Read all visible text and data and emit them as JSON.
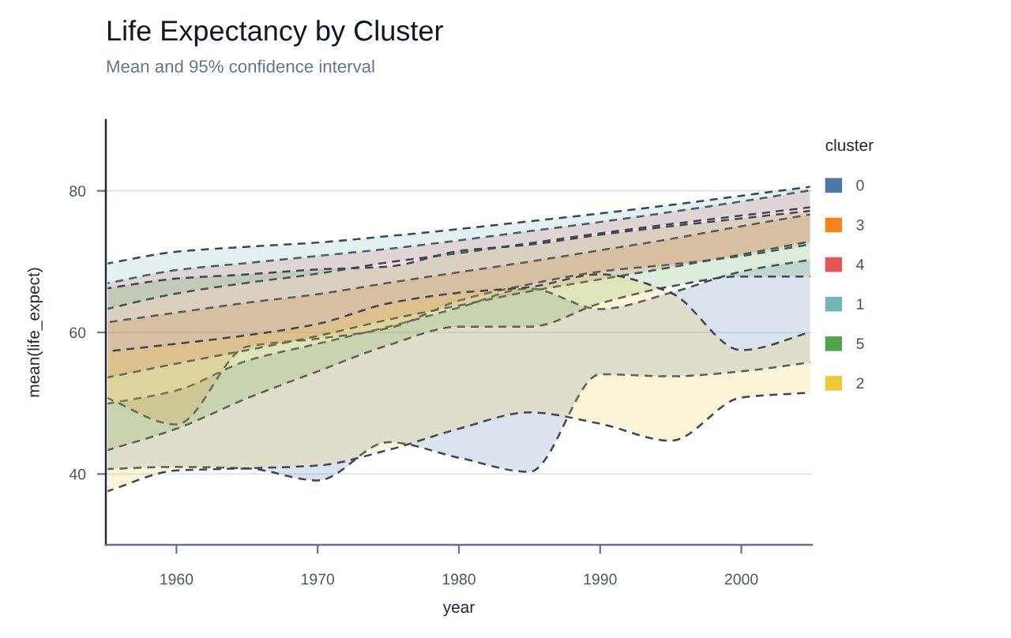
{
  "chart_data": {
    "type": "area",
    "title": "Life Expectancy by Cluster",
    "subtitle": "Mean and 95% confidence interval",
    "xlabel": "year",
    "ylabel": "mean(life_expect)",
    "legend_title": "cluster",
    "x": [
      1955,
      1960,
      1965,
      1970,
      1975,
      1980,
      1985,
      1990,
      1995,
      2000,
      2005
    ],
    "xlim": [
      1955,
      2005
    ],
    "xticks": [
      1960,
      1970,
      1980,
      1990,
      2000
    ],
    "ylim": [
      30,
      90
    ],
    "yticks": [
      40,
      60,
      80
    ],
    "grid": "y",
    "legend": "right",
    "line_style": "dashed",
    "series": [
      {
        "name": "0",
        "color": "#4c78a8",
        "values": [
          null,
          null,
          null,
          null,
          null,
          null,
          null,
          null,
          null,
          null,
          null
        ],
        "lower": [
          40.7,
          41.0,
          40.8,
          39.1,
          44.5,
          42.3,
          40.3,
          54.1,
          53.8,
          54.5,
          55.8
        ],
        "upper": [
          49.9,
          51.8,
          56.0,
          58.4,
          60.8,
          63.5,
          66.2,
          63.3,
          65.6,
          68.6,
          70.3
        ]
      },
      {
        "name": "3",
        "color": "#f58518",
        "values": [
          null,
          null,
          null,
          null,
          null,
          null,
          null,
          null,
          null,
          null,
          null
        ],
        "lower": [
          50.8,
          47.0,
          58.0,
          59.1,
          60.6,
          64.5,
          66.8,
          68.6,
          69.6,
          70.8,
          72.5
        ],
        "upper": [
          61.4,
          62.8,
          64.2,
          65.4,
          67.0,
          68.5,
          70.0,
          71.6,
          73.2,
          75.0,
          76.7
        ]
      },
      {
        "name": "4",
        "color": "#e45756",
        "values": [
          null,
          null,
          null,
          null,
          null,
          null,
          null,
          null,
          null,
          null,
          null
        ],
        "lower": [
          53.6,
          55.6,
          57.5,
          59.5,
          61.8,
          63.8,
          65.8,
          67.5,
          69.2,
          71.0,
          72.9
        ],
        "upper": [
          66.9,
          68.8,
          69.8,
          70.8,
          71.8,
          73.0,
          74.3,
          75.6,
          77.0,
          78.5,
          80.1
        ]
      },
      {
        "name": "1",
        "color": "#72b7b2",
        "values": [
          null,
          null,
          null,
          null,
          null,
          null,
          null,
          null,
          null,
          null,
          null
        ],
        "lower": [
          63.3,
          65.5,
          67.0,
          68.3,
          69.9,
          71.2,
          72.6,
          74.0,
          75.3,
          76.5,
          77.7
        ],
        "upper": [
          69.7,
          71.4,
          72.1,
          72.7,
          73.6,
          74.6,
          75.7,
          76.8,
          78.0,
          79.3,
          80.6
        ]
      },
      {
        "name": "5",
        "color": "#54a24b",
        "values": [
          null,
          null,
          null,
          null,
          null,
          null,
          null,
          null,
          null,
          null,
          null
        ],
        "lower": [
          43.3,
          46.4,
          50.7,
          54.5,
          58.2,
          60.8,
          60.8,
          64.1,
          66.5,
          67.9,
          67.9
        ],
        "upper": [
          66.2,
          67.6,
          68.2,
          68.9,
          69.3,
          71.5,
          72.4,
          73.8,
          75.0,
          76.1,
          77.2
        ]
      },
      {
        "name": "2",
        "color": "#eeca3b",
        "values": [
          null,
          null,
          null,
          null,
          null,
          null,
          null,
          null,
          null,
          null,
          null
        ],
        "lower": [
          37.5,
          40.5,
          40.8,
          41.2,
          43.4,
          46.4,
          48.7,
          47.1,
          44.7,
          50.8,
          51.5
        ],
        "upper": [
          57.3,
          58.4,
          59.6,
          61.2,
          64.1,
          65.6,
          66.4,
          68.2,
          65.6,
          57.5,
          60.1
        ]
      }
    ]
  }
}
